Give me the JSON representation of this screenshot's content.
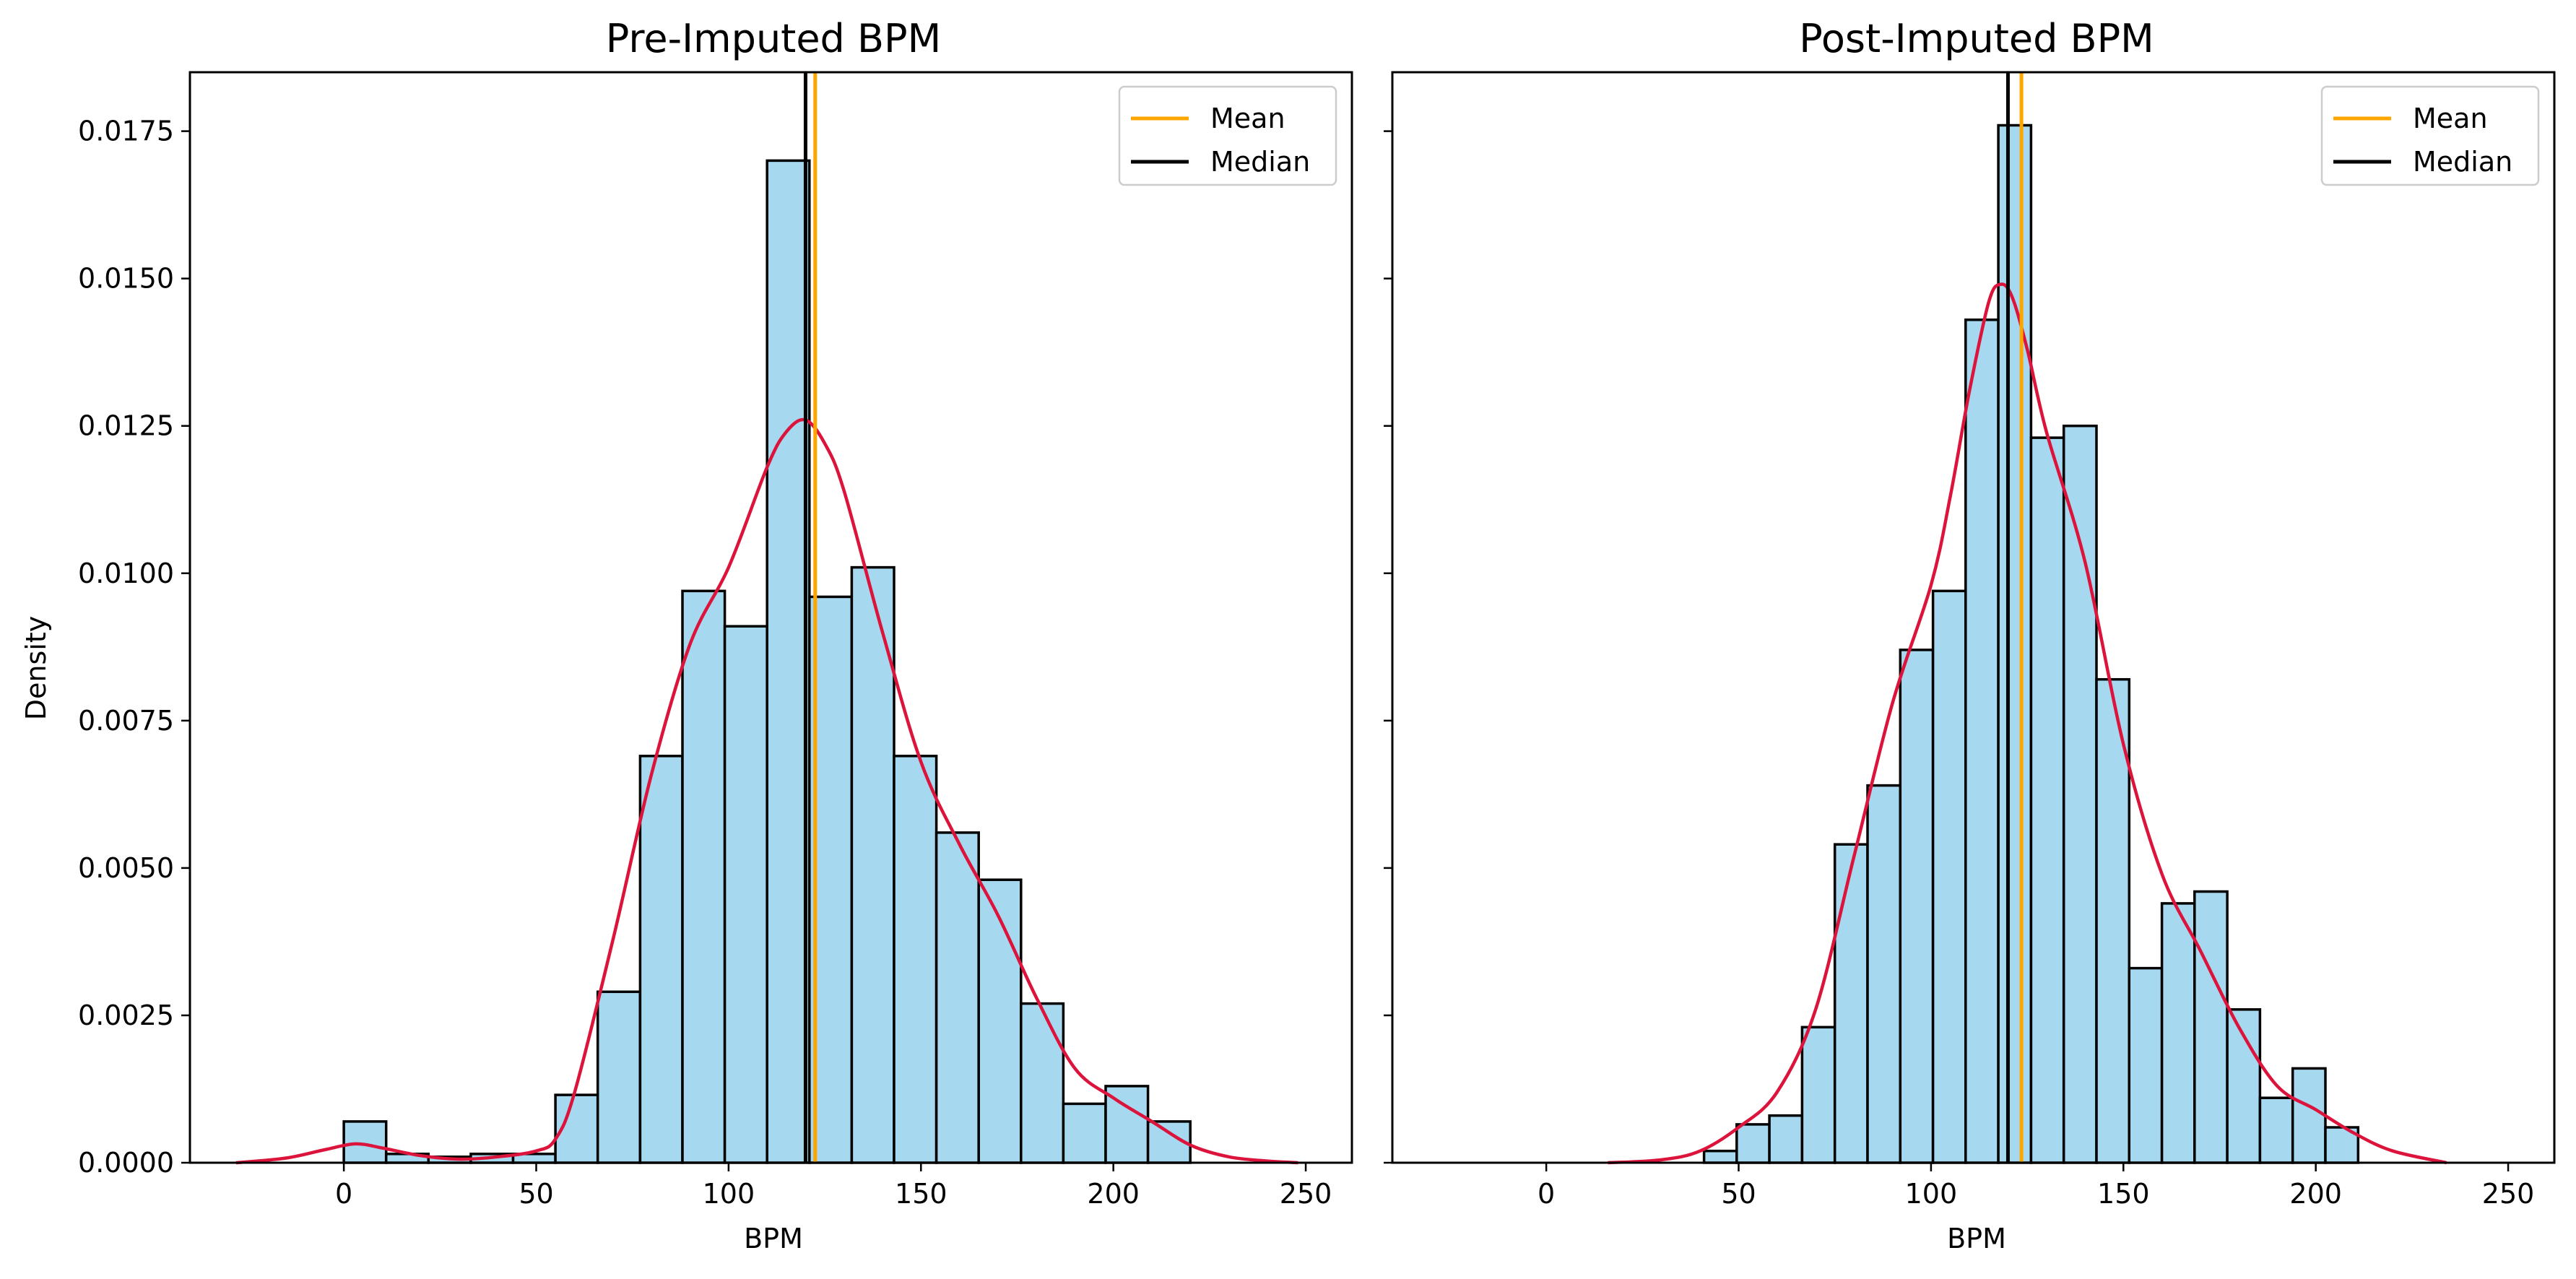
{
  "colors": {
    "bar_fill": "#a6d8f0",
    "bar_edge": "#000000",
    "kde": "#dc143c",
    "mean": "#ffa500",
    "median": "#000000"
  },
  "shared": {
    "xlabel": "BPM",
    "ylabel": "Density",
    "xticks": [
      0,
      50,
      100,
      150,
      200,
      250
    ],
    "yticks": [
      0.0,
      0.0025,
      0.005,
      0.0075,
      0.01,
      0.0125,
      0.015,
      0.0175
    ],
    "ytick_labels": [
      "0.0000",
      "0.0025",
      "0.0050",
      "0.0075",
      "0.0100",
      "0.0125",
      "0.0150",
      "0.0175"
    ],
    "xlim": [
      -40,
      262
    ],
    "ylim": [
      0,
      0.0185
    ],
    "sharey": true
  },
  "chart_data": [
    {
      "type": "histogram",
      "title": "Pre-Imputed BPM",
      "xlabel": "BPM",
      "ylabel": "Density",
      "legend": {
        "placement": "top-right",
        "entries": [
          "Mean",
          "Median"
        ]
      },
      "mean": 122.5,
      "median": 120,
      "bins": [
        {
          "x0": 0,
          "x1": 11,
          "density": 0.0007
        },
        {
          "x0": 11,
          "x1": 22,
          "density": 0.00015
        },
        {
          "x0": 22,
          "x1": 33,
          "density": 0.0001
        },
        {
          "x0": 33,
          "x1": 44,
          "density": 0.00015
        },
        {
          "x0": 44,
          "x1": 55,
          "density": 0.00015
        },
        {
          "x0": 55,
          "x1": 66,
          "density": 0.00115
        },
        {
          "x0": 66,
          "x1": 77,
          "density": 0.0029
        },
        {
          "x0": 77,
          "x1": 88,
          "density": 0.0069
        },
        {
          "x0": 88,
          "x1": 99,
          "density": 0.0097
        },
        {
          "x0": 99,
          "x1": 110,
          "density": 0.0091
        },
        {
          "x0": 110,
          "x1": 121,
          "density": 0.017
        },
        {
          "x0": 121,
          "x1": 132,
          "density": 0.0096
        },
        {
          "x0": 132,
          "x1": 143,
          "density": 0.0101
        },
        {
          "x0": 143,
          "x1": 154,
          "density": 0.0069
        },
        {
          "x0": 154,
          "x1": 165,
          "density": 0.0056
        },
        {
          "x0": 165,
          "x1": 176,
          "density": 0.0048
        },
        {
          "x0": 176,
          "x1": 187,
          "density": 0.0027
        },
        {
          "x0": 187,
          "x1": 198,
          "density": 0.001
        },
        {
          "x0": 198,
          "x1": 209,
          "density": 0.0013
        },
        {
          "x0": 209,
          "x1": 220,
          "density": 0.0007
        }
      ],
      "kde": {
        "x": [
          -28,
          -15,
          -5,
          3,
          10,
          20,
          30,
          40,
          50,
          55,
          60,
          70,
          80,
          90,
          100,
          110,
          115,
          120,
          125,
          130,
          140,
          150,
          160,
          170,
          180,
          190,
          200,
          210,
          220,
          230,
          240,
          248
        ],
        "y": [
          0.0,
          8e-05,
          0.00022,
          0.00032,
          0.00025,
          0.00012,
          6e-05,
          0.0001,
          0.0002,
          0.0004,
          0.0012,
          0.0038,
          0.0066,
          0.0088,
          0.0101,
          0.0118,
          0.0124,
          0.0126,
          0.0122,
          0.0114,
          0.009,
          0.0068,
          0.0054,
          0.0042,
          0.0028,
          0.0016,
          0.0011,
          0.0007,
          0.0003,
          0.0001,
          3e-05,
          0.0
        ]
      }
    },
    {
      "type": "histogram",
      "title": "Post-Imputed BPM",
      "xlabel": "BPM",
      "ylabel": "",
      "legend": {
        "placement": "top-right",
        "entries": [
          "Mean",
          "Median"
        ]
      },
      "mean": 123.5,
      "median": 120,
      "bins": [
        {
          "x0": 41,
          "x1": 49.5,
          "density": 0.0002
        },
        {
          "x0": 49.5,
          "x1": 58,
          "density": 0.00065
        },
        {
          "x0": 58,
          "x1": 66.5,
          "density": 0.0008
        },
        {
          "x0": 66.5,
          "x1": 75,
          "density": 0.0023
        },
        {
          "x0": 75,
          "x1": 83.5,
          "density": 0.0054
        },
        {
          "x0": 83.5,
          "x1": 92,
          "density": 0.0064
        },
        {
          "x0": 92,
          "x1": 100.5,
          "density": 0.0087
        },
        {
          "x0": 100.5,
          "x1": 109,
          "density": 0.0097
        },
        {
          "x0": 109,
          "x1": 117.5,
          "density": 0.0143
        },
        {
          "x0": 117.5,
          "x1": 126,
          "density": 0.0176
        },
        {
          "x0": 126,
          "x1": 134.5,
          "density": 0.0123
        },
        {
          "x0": 134.5,
          "x1": 143,
          "density": 0.0125
        },
        {
          "x0": 143,
          "x1": 151.5,
          "density": 0.0082
        },
        {
          "x0": 151.5,
          "x1": 160,
          "density": 0.0033
        },
        {
          "x0": 160,
          "x1": 168.5,
          "density": 0.0044
        },
        {
          "x0": 168.5,
          "x1": 177,
          "density": 0.0046
        },
        {
          "x0": 177,
          "x1": 185.5,
          "density": 0.0026
        },
        {
          "x0": 185.5,
          "x1": 194,
          "density": 0.0011
        },
        {
          "x0": 194,
          "x1": 202.5,
          "density": 0.0016
        },
        {
          "x0": 202.5,
          "x1": 211,
          "density": 0.0006
        }
      ],
      "kde": {
        "x": [
          16,
          30,
          40,
          50,
          60,
          70,
          80,
          90,
          100,
          105,
          110,
          115,
          118,
          121,
          125,
          130,
          140,
          150,
          160,
          170,
          180,
          190,
          200,
          210,
          220,
          234
        ],
        "y": [
          0.0,
          5e-05,
          0.0002,
          0.0006,
          0.0012,
          0.0026,
          0.0052,
          0.0078,
          0.0098,
          0.0113,
          0.0131,
          0.0146,
          0.0149,
          0.0147,
          0.0138,
          0.0124,
          0.0102,
          0.0071,
          0.0049,
          0.0036,
          0.0023,
          0.0013,
          0.0009,
          0.0005,
          0.0002,
          0.0
        ]
      }
    }
  ]
}
